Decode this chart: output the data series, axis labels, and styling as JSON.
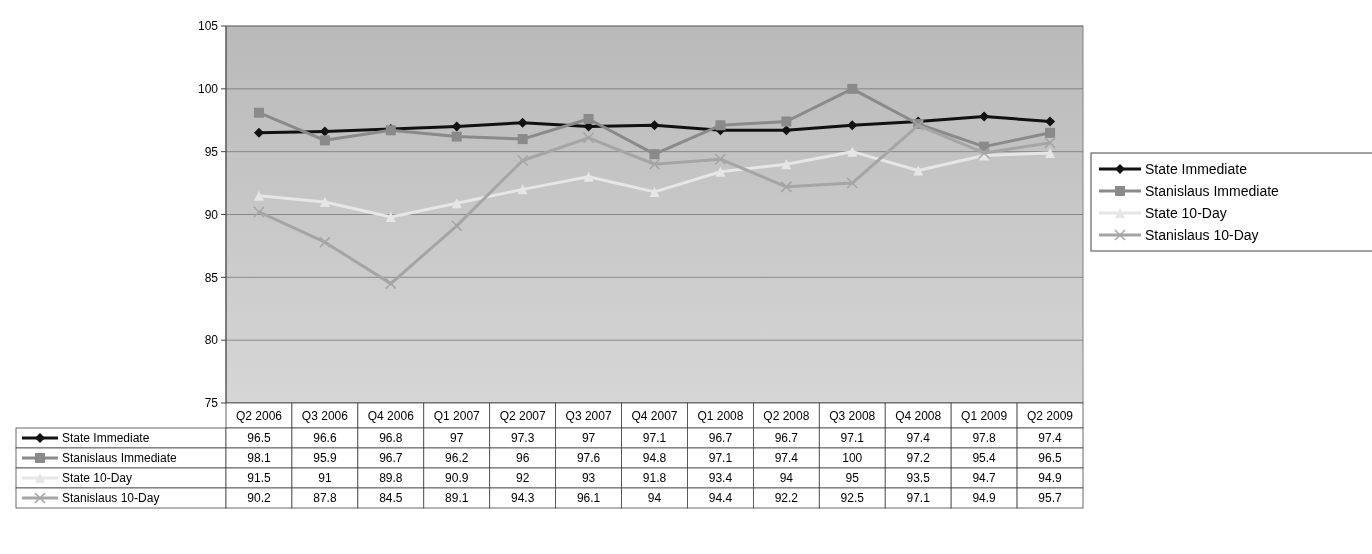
{
  "chart_data": {
    "type": "line",
    "categories": [
      "Q2 2006",
      "Q3 2006",
      "Q4 2006",
      "Q1 2007",
      "Q2 2007",
      "Q3 2007",
      "Q4 2007",
      "Q1 2008",
      "Q2 2008",
      "Q3 2008",
      "Q4 2008",
      "Q1 2009",
      "Q2 2009"
    ],
    "series": [
      {
        "name": "State Immediate",
        "color": "#111111",
        "marker": "diamond",
        "values": [
          96.5,
          96.6,
          96.8,
          97,
          97.3,
          97,
          97.1,
          96.7,
          96.7,
          97.1,
          97.4,
          97.8,
          97.4
        ]
      },
      {
        "name": "Stanislaus Immediate",
        "color": "#8a8a8a",
        "marker": "square",
        "values": [
          98.1,
          95.9,
          96.7,
          96.2,
          96,
          97.6,
          94.8,
          97.1,
          97.4,
          100,
          97.2,
          95.4,
          96.5
        ]
      },
      {
        "name": "State 10-Day",
        "color": "#e6e6e6",
        "marker": "triangle",
        "values": [
          91.5,
          91,
          89.8,
          90.9,
          92,
          93,
          91.8,
          93.4,
          94,
          95,
          93.5,
          94.7,
          94.9
        ]
      },
      {
        "name": "Stanislaus 10-Day",
        "color": "#a5a5a5",
        "marker": "cross",
        "values": [
          90.2,
          87.8,
          84.5,
          89.1,
          94.3,
          96.1,
          94,
          94.4,
          92.2,
          92.5,
          97.1,
          94.9,
          95.7
        ]
      }
    ],
    "ylim": [
      75,
      105
    ],
    "yticks": [
      75,
      80,
      85,
      90,
      95,
      100,
      105
    ],
    "grid": "y",
    "legend": "right",
    "data_labels": true
  }
}
